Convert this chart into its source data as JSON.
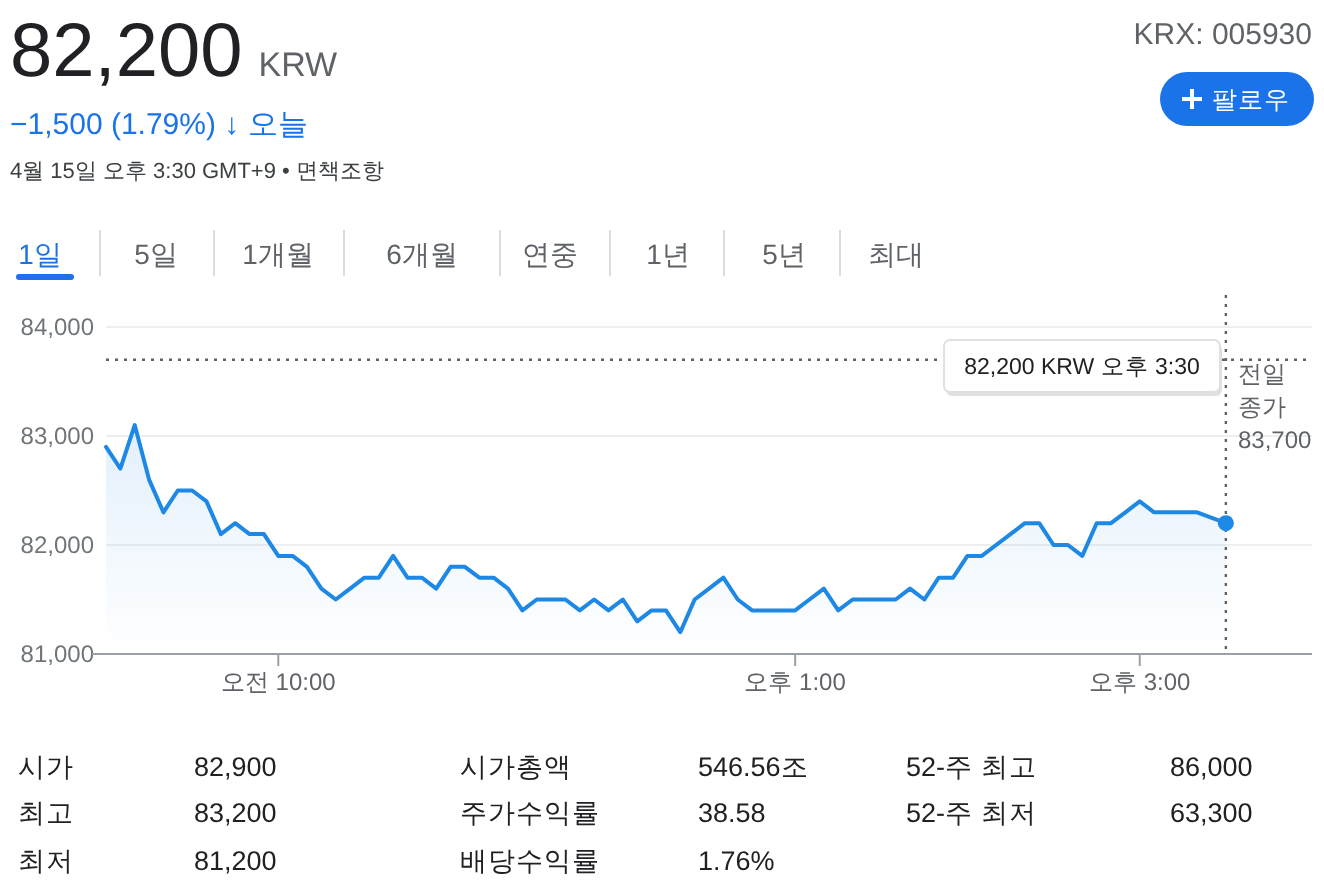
{
  "chart_data": {
    "type": "area",
    "title": "82,200 KRW",
    "subtitle": "−1,500 (1.79%) ↓ 오늘",
    "categories": [
      null,
      null,
      null,
      null,
      null,
      null,
      null,
      null,
      null,
      null,
      null,
      null,
      "오전 10:00",
      null,
      null,
      null,
      null,
      null,
      null,
      null,
      null,
      null,
      null,
      null,
      null,
      null,
      null,
      null,
      null,
      null,
      null,
      null,
      null,
      null,
      null,
      null,
      null,
      null,
      null,
      null,
      null,
      null,
      null,
      null,
      null,
      null,
      null,
      null,
      "오후 1:00",
      null,
      null,
      null,
      null,
      null,
      null,
      null,
      null,
      null,
      null,
      null,
      null,
      null,
      null,
      null,
      null,
      null,
      null,
      null,
      null,
      null,
      null,
      null,
      "오후 3:00",
      null,
      null,
      null,
      null,
      null,
      null,
      null,
      null,
      null,
      null,
      null
    ],
    "series": [
      {
        "color": "#1e88e5",
        "values": [
          82900,
          82700,
          83100,
          82600,
          82300,
          82500,
          82500,
          82400,
          82100,
          82200,
          82100,
          82100,
          81900,
          81900,
          81800,
          81600,
          81500,
          81600,
          81700,
          81700,
          81900,
          81700,
          81700,
          81600,
          81800,
          81800,
          81700,
          81700,
          81600,
          81400,
          81500,
          81500,
          81500,
          81400,
          81500,
          81400,
          81500,
          81300,
          81400,
          81400,
          81200,
          81500,
          81600,
          81700,
          81500,
          81400,
          81400,
          81400,
          81400,
          81500,
          81600,
          81400,
          81500,
          81500,
          81500,
          81500,
          81600,
          81500,
          81700,
          81700,
          81900,
          81900,
          82000,
          82100,
          82200,
          82200,
          82000,
          82000,
          81900,
          82200,
          82200,
          82300,
          82400,
          82300,
          82300,
          82300,
          82300,
          null,
          82200,
          null,
          null,
          null,
          null,
          null
        ]
      }
    ],
    "ylim": [
      81000,
      84000
    ],
    "yticks": [
      {
        "value": 81000,
        "label": "81,000"
      },
      {
        "value": 82000,
        "label": "82,000"
      },
      {
        "value": 83000,
        "label": "83,000"
      },
      {
        "value": 84000,
        "label": "84,000"
      }
    ],
    "grid": "y",
    "ref_lines": [
      {
        "axis": "y",
        "value": 83700,
        "label": "전일 종가 83,700",
        "line_style": "dotted",
        "color": "#5f6368"
      }
    ],
    "annotations": [
      "KRX: 005930",
      "팔로우",
      "4월 15일 오후 3:30 GMT+9 • 면책조항",
      "1일",
      "5일",
      "1개월",
      "6개월",
      "연중",
      "1년",
      "5년",
      "최대",
      "시가",
      "82,900",
      "최고",
      "83,200",
      "최저",
      "81,200",
      "시가총액",
      "546.56조",
      "주가수익률",
      "38.58",
      "배당수익률",
      "1.76%",
      "52-주 최고",
      "86,000",
      "52-주 최저",
      "63,300",
      "82,200 KRW  오후 3:30"
    ]
  }
}
